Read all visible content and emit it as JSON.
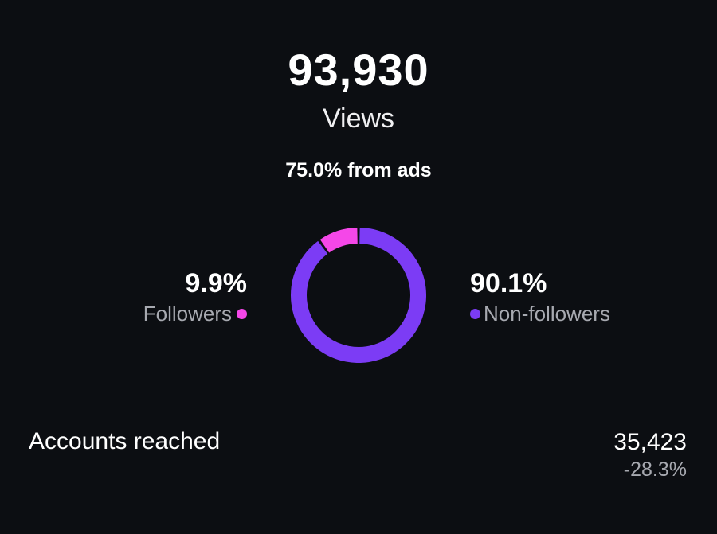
{
  "views": {
    "total": "93,930",
    "label": "Views",
    "ads_note": "75.0% from ads"
  },
  "breakdown": {
    "followers": {
      "percent_text": "9.9%",
      "label": "Followers",
      "share": 0.099,
      "color": "#f547e8"
    },
    "non_followers": {
      "percent_text": "90.1%",
      "label": "Non-followers",
      "share": 0.901,
      "color": "#7c3cf5"
    }
  },
  "accounts_reached": {
    "label": "Accounts reached",
    "value": "35,423",
    "change": "-28.3%"
  },
  "colors": {
    "background": "#0c0e12",
    "muted_text": "#a7a9b0"
  }
}
